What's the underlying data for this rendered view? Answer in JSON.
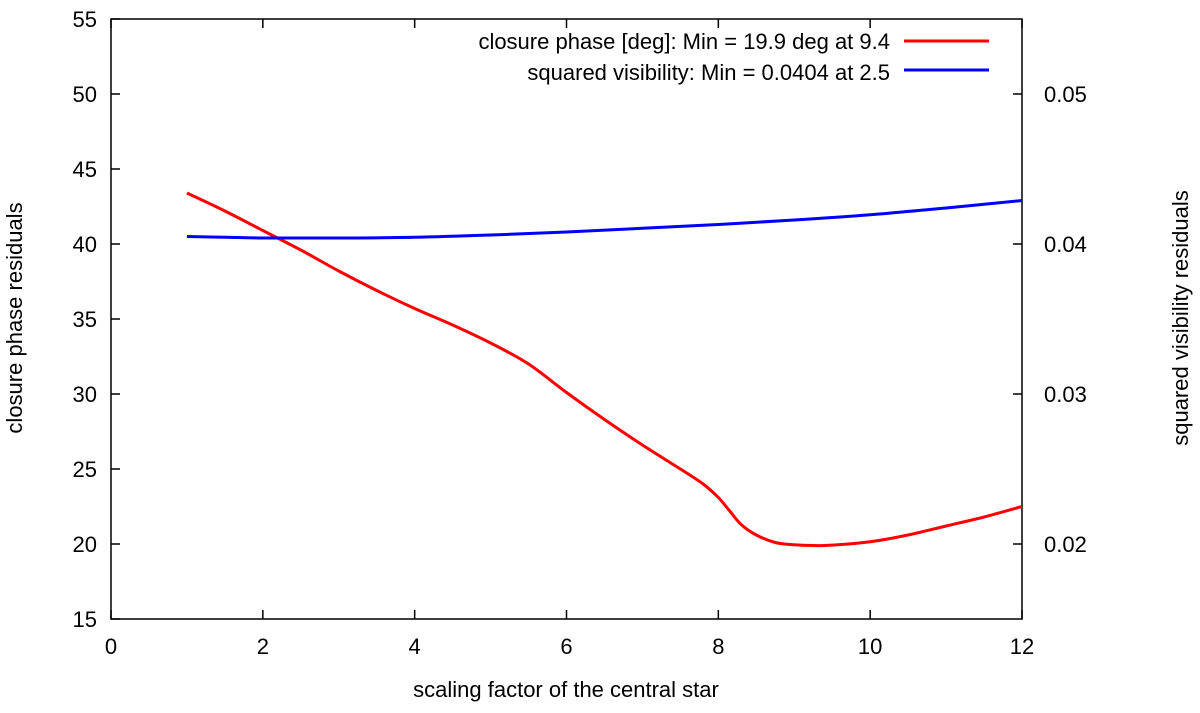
{
  "chart_data": {
    "type": "line",
    "title": "",
    "xlabel": "scaling factor of the central star",
    "ylabel": "closure phase residuals",
    "y2label": "squared visibility residuals",
    "xlim": [
      0,
      12
    ],
    "ylim": [
      15,
      55
    ],
    "y2lim": [
      0.015,
      0.055
    ],
    "xticks": [
      "0",
      "2",
      "4",
      "6",
      "8",
      "10",
      "12"
    ],
    "yticks": [
      "15",
      "20",
      "25",
      "30",
      "35",
      "40",
      "45",
      "50",
      "55"
    ],
    "y2ticks": [
      "0.02",
      "0.03",
      "0.04",
      "0.05"
    ],
    "grid": false,
    "legend_position": "top-right",
    "series": [
      {
        "name": "closure phase [deg]: Min = 19.9 deg at 9.4",
        "axis": "left",
        "color": "#ff0000",
        "x": [
          1.0,
          1.5,
          2.0,
          2.5,
          3.0,
          3.5,
          4.0,
          4.5,
          5.0,
          5.5,
          6.0,
          6.5,
          7.0,
          7.5,
          7.8,
          8.0,
          8.15,
          8.3,
          8.5,
          8.75,
          9.0,
          9.4,
          10.0,
          10.5,
          11.0,
          11.5,
          12.0
        ],
        "values": [
          43.4,
          42.2,
          40.9,
          39.6,
          38.2,
          36.9,
          35.7,
          34.6,
          33.4,
          32.0,
          30.1,
          28.3,
          26.6,
          25.0,
          24.0,
          23.1,
          22.2,
          21.3,
          20.6,
          20.1,
          19.95,
          19.9,
          20.15,
          20.6,
          21.2,
          21.8,
          22.5
        ]
      },
      {
        "name": "squared visibility: Min = 0.0404 at 2.5",
        "axis": "right",
        "color": "#0000ff",
        "x": [
          1.0,
          1.5,
          2.0,
          2.5,
          3.0,
          4.0,
          5.0,
          6.0,
          7.0,
          8.0,
          9.0,
          10.0,
          11.0,
          12.0
        ],
        "values": [
          0.0405,
          0.04045,
          0.0404,
          0.0404,
          0.0404,
          0.04045,
          0.0406,
          0.0408,
          0.04105,
          0.0413,
          0.0416,
          0.04195,
          0.0424,
          0.0429
        ]
      }
    ]
  }
}
